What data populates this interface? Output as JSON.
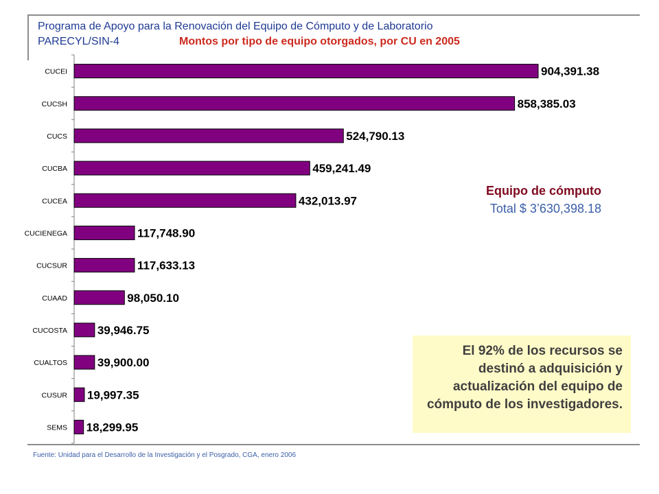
{
  "header": {
    "line1": "Programa de Apoyo para la Renovación del Equipo de Cómputo y de Laboratorio",
    "code": "PARECYL/SIN-4",
    "title": "Montos por tipo de equipo otorgados, por CU en 2005"
  },
  "summary": {
    "title": "Equipo de cómputo",
    "total": "Total $ 3’630,398.18"
  },
  "note": "El 92% de los recursos se destinó a adquisición y actualización del equipo de cómputo de los investigadores.",
  "source": "Fuente: Unidad para el Desarrollo de la Investigación y el Posgrado, CGA, enero 2006",
  "colors": {
    "bar": "#800080",
    "title_red": "#cc2a1e",
    "blue_text": "#1f3a93",
    "note_bg": "#fffbc8",
    "summary_title": "#7f0b21"
  },
  "chart_data": {
    "type": "bar",
    "orientation": "horizontal",
    "title": "Montos por tipo de equipo otorgados, por CU en 2005",
    "categories": [
      "CUCEI",
      "CUCSH",
      "CUCS",
      "CUCBA",
      "CUCEA",
      "CUCIENEGA",
      "CUCSUR",
      "CUAAD",
      "CUCOSTA",
      "CUALTOS",
      "CUSUR",
      "SEMS"
    ],
    "values": [
      904391.38,
      858385.03,
      524790.13,
      459241.49,
      432013.97,
      117748.9,
      117633.13,
      98050.1,
      39946.75,
      39900.0,
      19997.35,
      18299.95
    ],
    "data_labels": [
      "904,391.38",
      "858,385.03",
      "524,790.13",
      "459,241.49",
      "432,013.97",
      "117,748.90",
      "117,633.13",
      "98,050.10",
      "39,946.75",
      "39,900.00",
      "19,997.35",
      "18,299.95"
    ],
    "xlim": [
      0,
      904391.38
    ],
    "grid": false,
    "legend": "none"
  }
}
